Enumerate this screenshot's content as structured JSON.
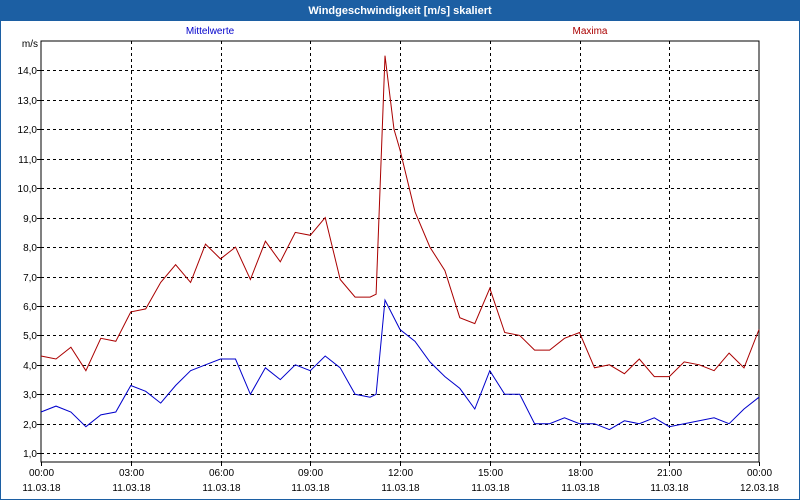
{
  "window": {
    "title": "Windgeschwindigkeit [m/s] skaliert"
  },
  "chart_data": {
    "type": "line",
    "title": "Windgeschwindigkeit [m/s] skaliert",
    "ylabel": "m/s",
    "xlabel": "",
    "ylim": [
      0.7,
      15.0
    ],
    "y_ticks": [
      "1,0",
      "2,0",
      "3,0",
      "4,0",
      "5,0",
      "6,0",
      "7,0",
      "8,0",
      "9,0",
      "10,0",
      "11,0",
      "12,0",
      "13,0",
      "14,0"
    ],
    "y_tick_values": [
      1,
      2,
      3,
      4,
      5,
      6,
      7,
      8,
      9,
      10,
      11,
      12,
      13,
      14
    ],
    "x_ticks": [
      {
        "time": "00:00",
        "date": "11.03.18"
      },
      {
        "time": "03:00",
        "date": "11.03.18"
      },
      {
        "time": "06:00",
        "date": "11.03.18"
      },
      {
        "time": "09:00",
        "date": "11.03.18"
      },
      {
        "time": "12:00",
        "date": "11.03.18"
      },
      {
        "time": "15:00",
        "date": "11.03.18"
      },
      {
        "time": "18:00",
        "date": "11.03.18"
      },
      {
        "time": "21:00",
        "date": "11.03.18"
      },
      {
        "time": "00:00",
        "date": "12.03.18"
      }
    ],
    "x_unit": "hours since 11.03.18 00:00",
    "xlim": [
      0,
      24
    ],
    "grid": true,
    "legend_placement": "top",
    "series": [
      {
        "name": "Mittelwerte",
        "color": "#0000cc",
        "x": [
          0,
          0.5,
          1,
          1.5,
          2,
          2.5,
          3,
          3.5,
          4,
          4.5,
          5,
          5.5,
          6,
          6.5,
          7,
          7.5,
          8,
          8.5,
          9,
          9.5,
          10,
          10.5,
          11,
          11.2,
          11.5,
          12,
          12.5,
          13,
          13.5,
          14,
          14.5,
          15,
          15.5,
          16,
          16.5,
          17,
          17.5,
          18,
          18.5,
          19,
          19.5,
          20,
          20.5,
          21,
          21.5,
          22,
          22.5,
          23,
          23.5,
          24
        ],
        "values": [
          2.4,
          2.6,
          2.4,
          1.9,
          2.3,
          2.4,
          3.3,
          3.1,
          2.7,
          3.3,
          3.8,
          4.0,
          4.2,
          4.2,
          3.0,
          3.9,
          3.5,
          4.0,
          3.8,
          4.3,
          3.9,
          3.0,
          2.9,
          3.0,
          6.2,
          5.2,
          4.8,
          4.1,
          3.6,
          3.2,
          2.5,
          3.8,
          3.0,
          3.0,
          2.0,
          2.0,
          2.2,
          2.0,
          2.0,
          1.8,
          2.1,
          2.0,
          2.2,
          1.9,
          2.0,
          2.1,
          2.2,
          2.0,
          2.5,
          2.9
        ]
      },
      {
        "name": "Maxima",
        "color": "#aa0000",
        "x": [
          0,
          0.5,
          1,
          1.5,
          2,
          2.5,
          3,
          3.5,
          4,
          4.5,
          5,
          5.5,
          6,
          6.5,
          7,
          7.5,
          8,
          8.5,
          9,
          9.5,
          10,
          10.5,
          11,
          11.2,
          11.5,
          11.8,
          12,
          12.5,
          13,
          13.5,
          14,
          14.5,
          15,
          15.5,
          16,
          16.5,
          17,
          17.5,
          18,
          18.5,
          19,
          19.5,
          20,
          20.5,
          21,
          21.5,
          22,
          22.5,
          23,
          23.5,
          24
        ],
        "values": [
          4.3,
          4.2,
          4.6,
          3.8,
          4.9,
          4.8,
          5.8,
          5.9,
          6.8,
          7.4,
          6.8,
          8.1,
          7.6,
          8.0,
          6.9,
          8.2,
          7.5,
          8.5,
          8.4,
          9.0,
          6.9,
          6.3,
          6.3,
          6.4,
          14.5,
          12.0,
          11.3,
          9.2,
          8.0,
          7.2,
          5.6,
          5.4,
          6.6,
          5.1,
          5.0,
          4.5,
          4.5,
          4.9,
          5.1,
          3.9,
          4.0,
          3.7,
          4.2,
          3.6,
          3.6,
          4.1,
          4.0,
          3.8,
          4.4,
          3.9,
          5.2
        ]
      }
    ]
  }
}
